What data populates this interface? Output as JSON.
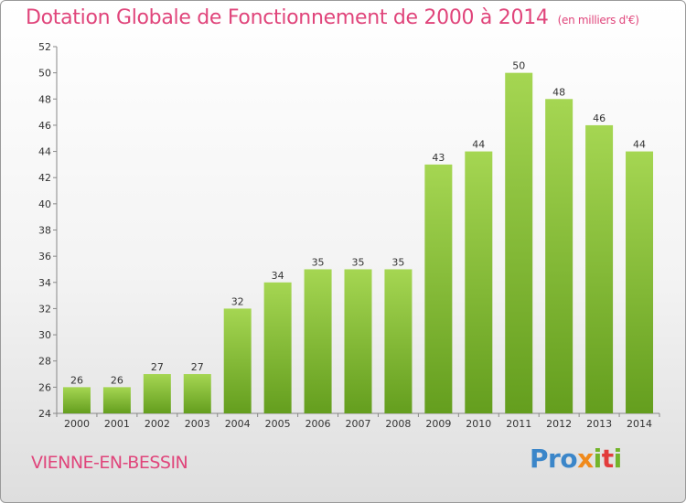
{
  "chart_data": {
    "type": "bar",
    "title": "Dotation Globale de Fonctionnement de 2000 à 2014",
    "subtitle": "(en milliers d'€)",
    "categories": [
      "2000",
      "2001",
      "2002",
      "2003",
      "2004",
      "2005",
      "2006",
      "2007",
      "2008",
      "2009",
      "2010",
      "2011",
      "2012",
      "2013",
      "2014"
    ],
    "values": [
      26,
      26,
      27,
      27,
      32,
      34,
      35,
      35,
      35,
      43,
      44,
      50,
      48,
      46,
      44
    ],
    "ylim": [
      24,
      52
    ],
    "yticks": [
      24,
      26,
      28,
      30,
      32,
      34,
      36,
      38,
      40,
      42,
      44,
      46,
      48,
      50,
      52
    ],
    "bar_color": "#7bb92e",
    "grid": false
  },
  "commune": "VIENNE-EN-BESSIN",
  "logo": {
    "p1": "Pro",
    "p2": "x",
    "p3": "i",
    "p4": "t",
    "p5": "i"
  },
  "colors": {
    "title": "#e0457b",
    "bar": "#7bb92e"
  }
}
